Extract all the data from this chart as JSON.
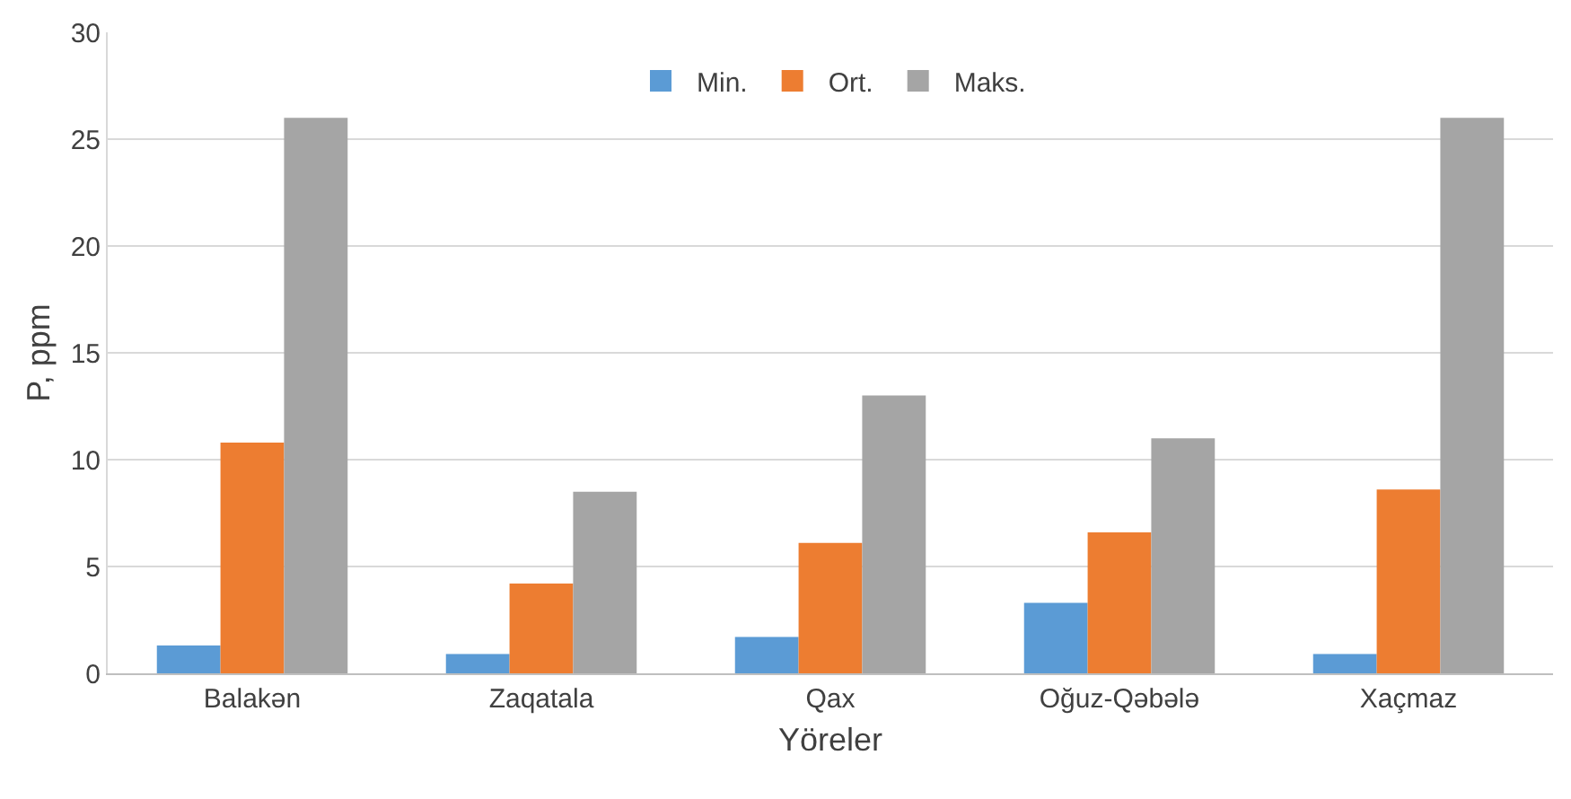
{
  "chart_data": {
    "type": "bar",
    "xlabel": "Yöreler",
    "ylabel": "P, ppm",
    "categories": [
      "Balakən",
      "Zaqatala",
      "Qax",
      "Oğuz-Qəbələ",
      "Xaçmaz"
    ],
    "series": [
      {
        "name": "Min.",
        "color": "#5b9bd5",
        "values": [
          1.3,
          0.9,
          1.7,
          3.3,
          0.9
        ]
      },
      {
        "name": "Ort.",
        "color": "#ed7d31",
        "values": [
          10.8,
          4.2,
          6.1,
          6.6,
          8.6
        ]
      },
      {
        "name": "Maks.",
        "color": "#a5a5a5",
        "values": [
          26,
          8.5,
          13,
          11,
          26
        ]
      }
    ],
    "ylim": [
      0,
      30
    ],
    "yticks": [
      0,
      5,
      10,
      15,
      20,
      25,
      30
    ],
    "grid": "y",
    "legend": "top"
  }
}
